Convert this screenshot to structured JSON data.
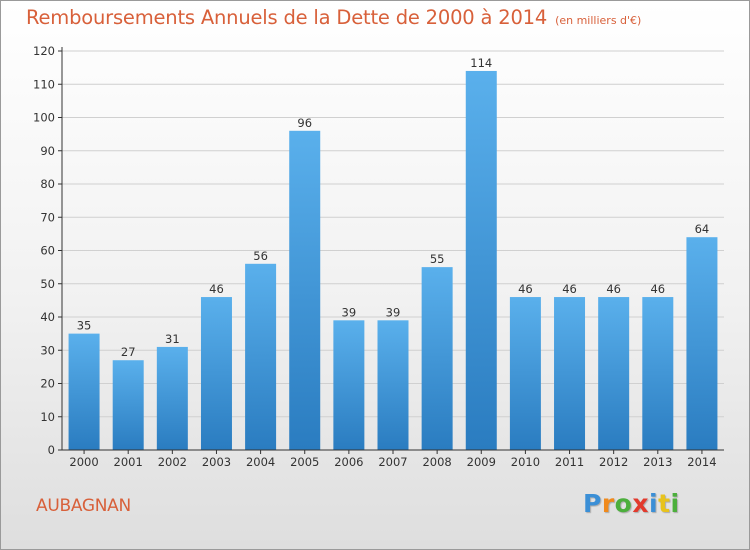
{
  "header": {
    "title": "Remboursements Annuels de la Dette de 2000 à 2014",
    "subtitle": "(en milliers d'€)"
  },
  "commune": "AUBAGNAN",
  "logo": {
    "text": "Proxiti",
    "letter_colors": [
      "#3b8fd6",
      "#f08a1c",
      "#4caf3c",
      "#e23a2d",
      "#3b8fd6",
      "#e8c31c",
      "#4caf3c"
    ]
  },
  "colors": {
    "bar_top": "#5ab0ec",
    "bar_bottom": "#2a7cc0",
    "grid": "#d0d0d0",
    "axis": "#333333",
    "title": "#d8603a"
  },
  "chart_data": {
    "type": "bar",
    "categories": [
      "2000",
      "2001",
      "2002",
      "2003",
      "2004",
      "2005",
      "2006",
      "2007",
      "2008",
      "2009",
      "2010",
      "2011",
      "2012",
      "2013",
      "2014"
    ],
    "values": [
      35,
      27,
      31,
      46,
      56,
      96,
      39,
      39,
      55,
      114,
      46,
      46,
      46,
      46,
      64
    ],
    "title": "Remboursements Annuels de la Dette de 2000 à 2014",
    "xlabel": "",
    "ylabel": "",
    "ylim": [
      0,
      120
    ],
    "yticks": [
      0,
      10,
      20,
      30,
      40,
      50,
      60,
      70,
      80,
      90,
      100,
      110,
      120
    ],
    "grid": true
  }
}
